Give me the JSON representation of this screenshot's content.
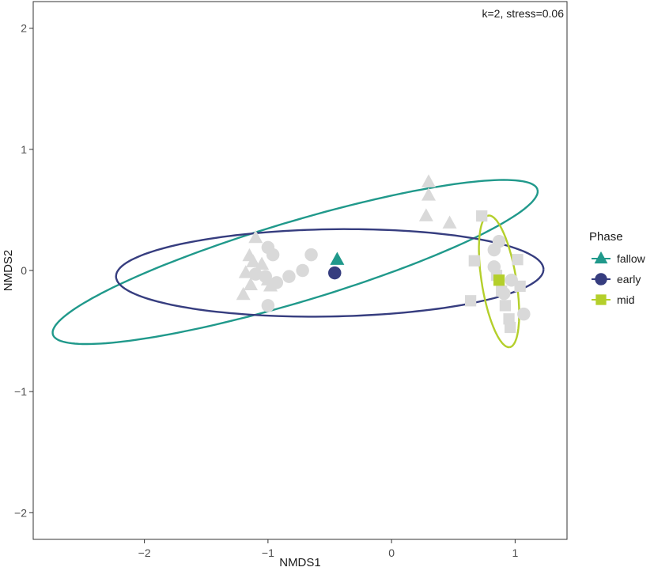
{
  "chart_data": {
    "type": "scatter",
    "xlabel": "NMDS1",
    "ylabel": "NMDS2",
    "annotation": "k=2, stress=0.06",
    "xlim": [
      -2.9,
      1.42
    ],
    "ylim": [
      -2.22,
      2.22
    ],
    "x_ticks": [
      -2,
      -1,
      0,
      1
    ],
    "y_ticks": [
      -2,
      -1,
      0,
      1,
      2
    ],
    "x_tick_labels": [
      "−2",
      "−1",
      "0",
      "1"
    ],
    "y_tick_labels": [
      "−2",
      "−1",
      "0",
      "1",
      "2"
    ],
    "grid": false,
    "legend": {
      "title": "Phase",
      "position": "right",
      "entries": [
        {
          "label": "fallow",
          "shape": "triangle",
          "color": "#20998b"
        },
        {
          "label": "early",
          "shape": "circle",
          "color": "#363d7f"
        },
        {
          "label": "mid",
          "shape": "square",
          "color": "#b4cf2b"
        }
      ]
    },
    "series": [
      {
        "name": "fallow",
        "shape": "triangle",
        "color": "#20998b",
        "centroid": [
          -0.44,
          0.09
        ],
        "ellipse": {
          "center": [
            -0.78,
            0.07
          ],
          "semi_major": 2.05,
          "semi_minor": 0.33,
          "angle_deg": 17
        },
        "points": [
          [
            -1.1,
            0.27
          ],
          [
            -1.15,
            0.12
          ],
          [
            -1.12,
            0.07
          ],
          [
            -1.18,
            -0.02
          ],
          [
            -1.05,
            0.05
          ],
          [
            -1.0,
            -0.08
          ],
          [
            -1.14,
            -0.12
          ],
          [
            -1.2,
            -0.2
          ],
          [
            -0.98,
            -0.13
          ],
          [
            0.3,
            0.73
          ],
          [
            0.3,
            0.62
          ],
          [
            0.28,
            0.45
          ],
          [
            0.47,
            0.39
          ]
        ]
      },
      {
        "name": "early",
        "shape": "circle",
        "color": "#363d7f",
        "centroid": [
          -0.46,
          -0.02
        ],
        "ellipse": {
          "center": [
            -0.5,
            -0.02
          ],
          "semi_major": 1.73,
          "semi_minor": 0.36,
          "angle_deg": 1
        },
        "points": [
          [
            -1.0,
            0.19
          ],
          [
            -0.96,
            0.13
          ],
          [
            -1.1,
            -0.03
          ],
          [
            -1.02,
            -0.05
          ],
          [
            -0.93,
            -0.1
          ],
          [
            -0.83,
            -0.05
          ],
          [
            -0.72,
            0.0
          ],
          [
            -0.65,
            0.13
          ],
          [
            -1.0,
            -0.29
          ],
          [
            0.87,
            0.24
          ],
          [
            0.83,
            0.17
          ],
          [
            0.83,
            0.03
          ],
          [
            0.97,
            -0.08
          ],
          [
            0.91,
            -0.19
          ],
          [
            1.07,
            -0.36
          ]
        ]
      },
      {
        "name": "mid",
        "shape": "square",
        "color": "#b4cf2b",
        "centroid": [
          0.87,
          -0.08
        ],
        "ellipse": {
          "center": [
            0.87,
            -0.09
          ],
          "semi_major": 0.55,
          "semi_minor": 0.14,
          "angle_deg": -81
        },
        "points": [
          [
            0.73,
            0.45
          ],
          [
            0.67,
            0.08
          ],
          [
            0.64,
            -0.25
          ],
          [
            0.85,
            -0.04
          ],
          [
            1.02,
            0.09
          ],
          [
            1.04,
            -0.13
          ],
          [
            0.92,
            -0.29
          ],
          [
            0.95,
            -0.4
          ],
          [
            0.96,
            -0.47
          ],
          [
            0.89,
            -0.17
          ]
        ]
      }
    ],
    "colors": {
      "points_gray": "#d9d9d9",
      "axis": "#333333"
    }
  }
}
